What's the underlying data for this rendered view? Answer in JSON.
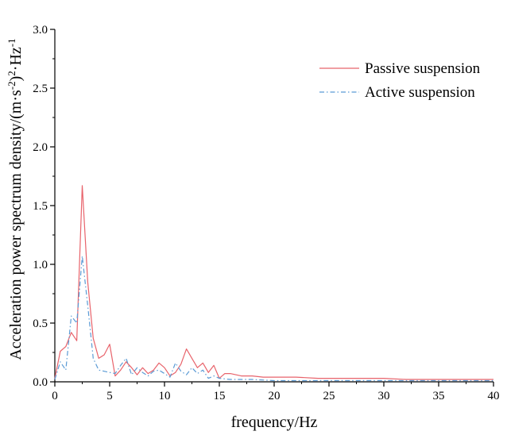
{
  "chart_data": {
    "type": "line",
    "title": "",
    "xlabel": "frequency/Hz",
    "ylabel": "Acceleration power spectrum density/(m·s-2)2·Hz-1",
    "ylabel_parts": {
      "main": "Acceleration power spectrum density/(m·s",
      "exp1": "-2",
      "mid": ")",
      "exp2": "2",
      "unit": "·Hz",
      "exp3": "-1"
    },
    "xlim": [
      0,
      40
    ],
    "ylim": [
      0,
      3.0
    ],
    "xticks": [
      "0",
      "5",
      "10",
      "15",
      "20",
      "25",
      "30",
      "35",
      "40"
    ],
    "xtick_values": [
      0,
      5,
      10,
      15,
      20,
      25,
      30,
      35,
      40
    ],
    "yticks": [
      "0.0",
      "0.5",
      "1.0",
      "1.5",
      "2.0",
      "2.5",
      "3.0"
    ],
    "ytick_values": [
      0,
      0.5,
      1.0,
      1.5,
      2.0,
      2.5,
      3.0
    ],
    "grid": false,
    "legend_position": "top-right",
    "series": [
      {
        "name": "Passive suspension",
        "color": "#e8636b",
        "style": "solid",
        "x": [
          0,
          0.5,
          1.0,
          1.5,
          2.0,
          2.5,
          3.0,
          3.5,
          4.0,
          4.5,
          5.0,
          5.5,
          6.0,
          6.5,
          7.0,
          7.5,
          8.0,
          8.5,
          9.0,
          9.5,
          10.0,
          10.5,
          11.0,
          11.5,
          12.0,
          12.5,
          13.0,
          13.5,
          14.0,
          14.5,
          15.0,
          15.5,
          16.0,
          17.0,
          18.0,
          19.0,
          20.0,
          22.0,
          24.0,
          26.0,
          28.0,
          30.0,
          32.0,
          34.0,
          36.0,
          38.0,
          40.0
        ],
        "values": [
          0.03,
          0.26,
          0.3,
          0.42,
          0.35,
          1.67,
          0.85,
          0.37,
          0.2,
          0.23,
          0.32,
          0.05,
          0.1,
          0.17,
          0.12,
          0.06,
          0.12,
          0.07,
          0.1,
          0.16,
          0.12,
          0.05,
          0.08,
          0.15,
          0.28,
          0.2,
          0.12,
          0.16,
          0.08,
          0.14,
          0.03,
          0.07,
          0.07,
          0.05,
          0.05,
          0.04,
          0.04,
          0.04,
          0.03,
          0.03,
          0.03,
          0.03,
          0.02,
          0.02,
          0.02,
          0.02,
          0.02
        ]
      },
      {
        "name": "Active suspension",
        "color": "#5b9bd5",
        "style": "dash-dot",
        "x": [
          0,
          0.5,
          1.0,
          1.5,
          2.0,
          2.5,
          3.0,
          3.5,
          4.0,
          4.5,
          5.0,
          5.5,
          6.0,
          6.5,
          7.0,
          7.5,
          8.0,
          8.5,
          9.0,
          9.5,
          10.0,
          10.5,
          11.0,
          11.5,
          12.0,
          12.5,
          13.0,
          13.5,
          14.0,
          14.5,
          15.0,
          16.0,
          17.0,
          18.0,
          20.0,
          22.0,
          24.0,
          26.0,
          28.0,
          30.0,
          32.0,
          34.0,
          36.0,
          38.0,
          40.0
        ],
        "values": [
          0.02,
          0.17,
          0.1,
          0.56,
          0.5,
          1.07,
          0.65,
          0.2,
          0.1,
          0.09,
          0.08,
          0.07,
          0.14,
          0.2,
          0.06,
          0.12,
          0.08,
          0.05,
          0.09,
          0.1,
          0.07,
          0.04,
          0.16,
          0.09,
          0.06,
          0.12,
          0.07,
          0.1,
          0.03,
          0.05,
          0.03,
          0.02,
          0.02,
          0.02,
          0.01,
          0.01,
          0.01,
          0.01,
          0.01,
          0.01,
          0.01,
          0.01,
          0.01,
          0.01,
          0.01
        ]
      }
    ]
  }
}
